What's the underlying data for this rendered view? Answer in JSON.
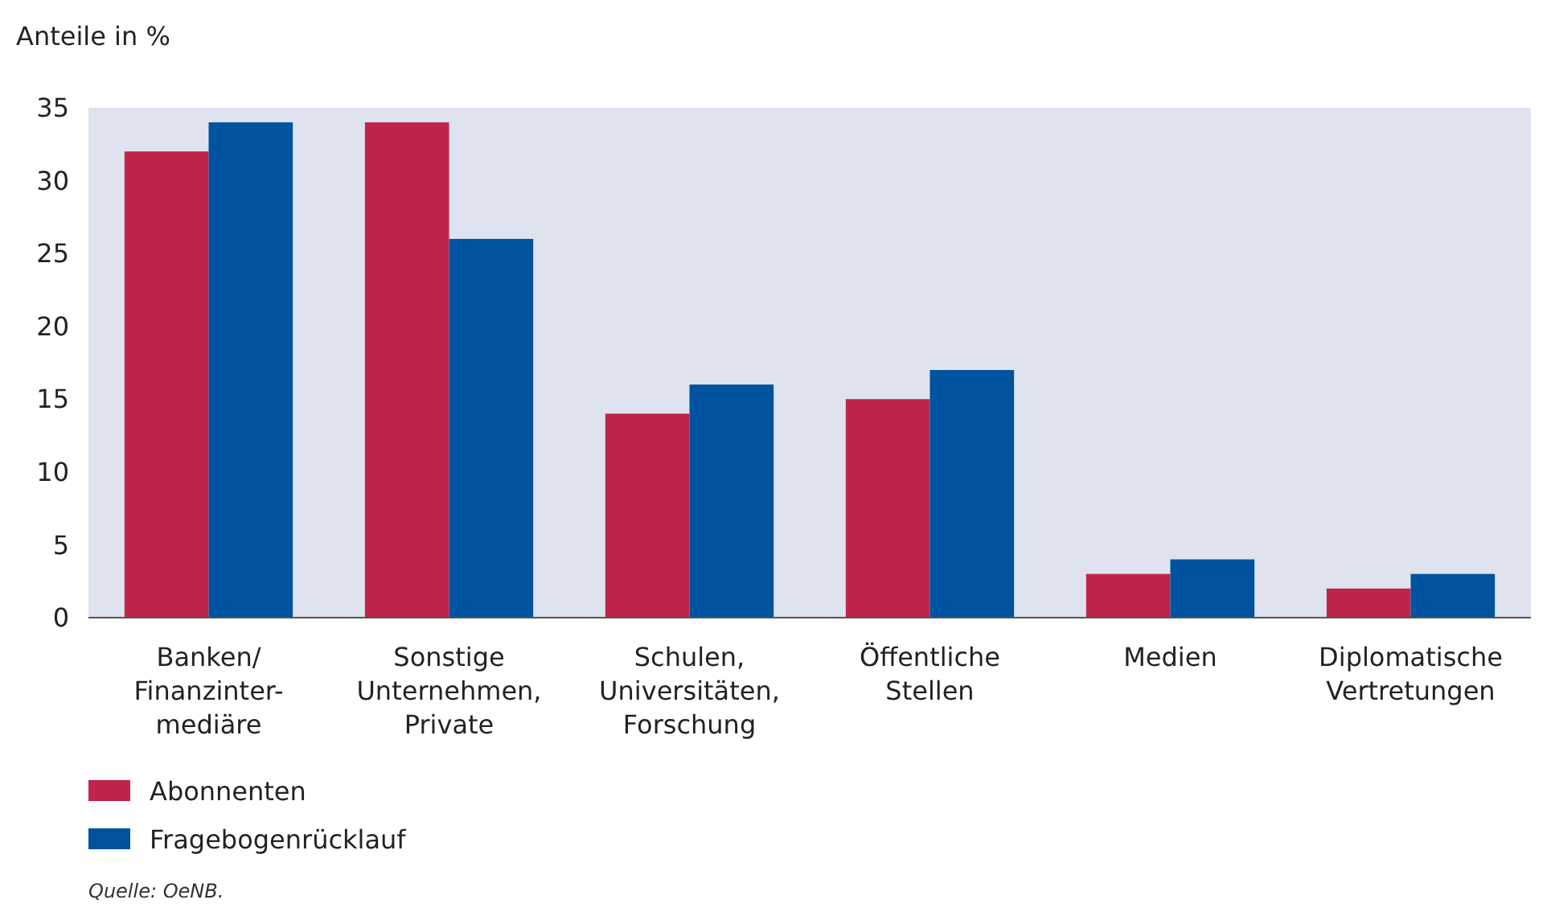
{
  "chart_data": {
    "type": "bar",
    "ylabel": "Anteile in %",
    "categories": [
      "Banken/\nFinanzinter-\nmediäre",
      "Sonstige\nUnternehmen,\nPrivate",
      "Schulen,\nUniversitäten,\nForschung",
      "Öffentliche\nStellen",
      "Medien",
      "Diplomatische\nVertretungen"
    ],
    "series": [
      {
        "name": "Abonnenten",
        "color": "#c0244b",
        "values": [
          32,
          34,
          14,
          15,
          3,
          2
        ]
      },
      {
        "name": "Fragebogenrücklauf",
        "color": "#00539f",
        "values": [
          34,
          26,
          16,
          17,
          4,
          3
        ]
      }
    ],
    "ylim": [
      0,
      35
    ],
    "yticks": [
      0,
      5,
      10,
      15,
      20,
      25,
      30,
      35
    ],
    "grid": false,
    "legend": "bottom left",
    "annotations": [
      "Quelle: OeNB."
    ]
  }
}
